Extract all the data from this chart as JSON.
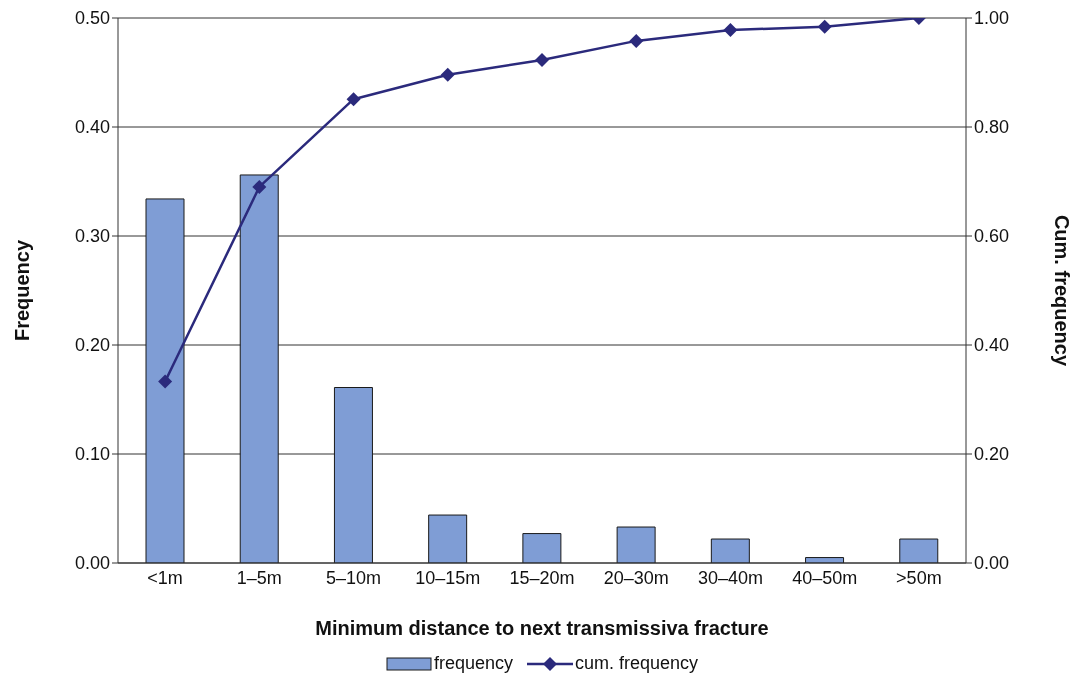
{
  "chart_data": {
    "type": "bar",
    "xlabel": "Minimum distance to next transmissiva fracture",
    "ylabel": "Frequency",
    "y2label": "Cum. frequency",
    "categories": [
      "<1m",
      "1–5m",
      "5–10m",
      "10–15m",
      "15–20m",
      "20–30m",
      "30–40m",
      "40–50m",
      ">50m"
    ],
    "series": [
      {
        "name": "frequency",
        "color": "#7f9dd5",
        "values": [
          0.334,
          0.356,
          0.161,
          0.044,
          0.027,
          0.033,
          0.022,
          0.005,
          0.022
        ]
      },
      {
        "name": "cum. frequency",
        "type": "line",
        "axis": "y2",
        "color": "#2b2a7c",
        "marker": "diamond",
        "line_style": "solid",
        "values": [
          0.333,
          0.69,
          0.851,
          0.896,
          0.923,
          0.958,
          0.978,
          0.984,
          1.0
        ]
      }
    ],
    "ylim": [
      0,
      0.5
    ],
    "yticks": [
      {
        "value": 0,
        "label": "0.00"
      },
      {
        "value": 0.1,
        "label": "0.10"
      },
      {
        "value": 0.2,
        "label": "0.20"
      },
      {
        "value": 0.3,
        "label": "0.30"
      },
      {
        "value": 0.4,
        "label": "0.40"
      },
      {
        "value": 0.5,
        "label": "0.50"
      }
    ],
    "y2lim": [
      0,
      1
    ],
    "y2ticks": [
      {
        "value": 0,
        "label": "0.00"
      },
      {
        "value": 0.2,
        "label": "0.20"
      },
      {
        "value": 0.4,
        "label": "0.40"
      },
      {
        "value": 0.6,
        "label": "0.60"
      },
      {
        "value": 0.8,
        "label": "0.80"
      },
      {
        "value": 1,
        "label": "1.00"
      }
    ],
    "grid": "y",
    "legend": "bottom"
  }
}
